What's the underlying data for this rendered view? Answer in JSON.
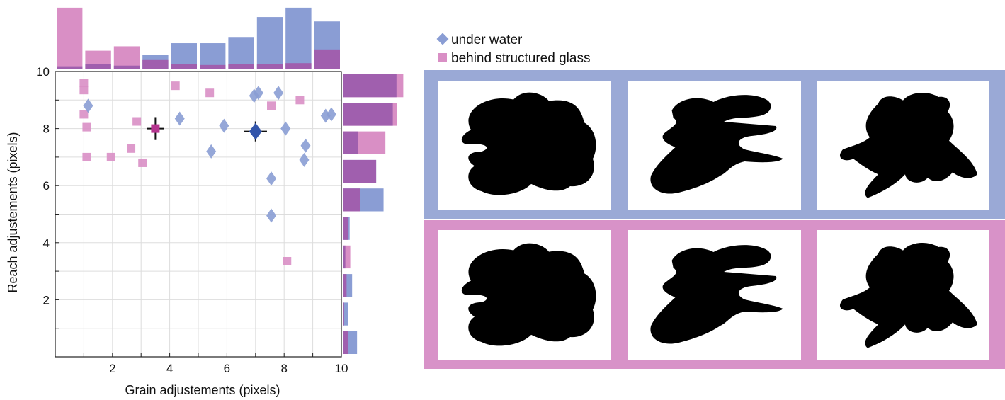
{
  "colors": {
    "water": "#8a9dd4",
    "glass": "#d98fc5",
    "overlap": "#a05fae",
    "water_mean": "#3355aa",
    "glass_mean": "#b5358f",
    "grid": "#dddddd",
    "frame_water": "#9aa9d6",
    "frame_glass": "#d892c8"
  },
  "chart_data": {
    "type": "scatter",
    "xlabel": "Grain adjustements (pixels)",
    "ylabel": "Reach adjustements (pixels)",
    "xlim": [
      0,
      10
    ],
    "ylim": [
      0,
      10
    ],
    "xticks": [
      "2",
      "4",
      "6",
      "8",
      "10"
    ],
    "yticks": [
      "2",
      "4",
      "6",
      "8",
      "10"
    ],
    "grid": true,
    "legend_position": "top-right",
    "series": [
      {
        "name": "under water",
        "marker": "diamond",
        "points": [
          [
            1.15,
            8.8
          ],
          [
            4.35,
            8.35
          ],
          [
            5.45,
            7.2
          ],
          [
            5.9,
            8.1
          ],
          [
            6.95,
            9.15
          ],
          [
            7.1,
            9.25
          ],
          [
            7.8,
            9.25
          ],
          [
            8.05,
            8.0
          ],
          [
            7.55,
            6.25
          ],
          [
            7.55,
            4.95
          ],
          [
            8.75,
            7.4
          ],
          [
            8.7,
            6.9
          ],
          [
            9.45,
            8.45
          ],
          [
            9.65,
            8.5
          ]
        ],
        "mean": [
          7.0,
          7.9
        ],
        "error": [
          0.4,
          0.35
        ]
      },
      {
        "name": "behind structured glass",
        "marker": "square",
        "points": [
          [
            1.0,
            9.6
          ],
          [
            1.0,
            9.35
          ],
          [
            1.0,
            8.5
          ],
          [
            1.1,
            8.05
          ],
          [
            1.1,
            7.0
          ],
          [
            1.95,
            7.0
          ],
          [
            2.65,
            7.3
          ],
          [
            2.85,
            8.25
          ],
          [
            3.05,
            6.8
          ],
          [
            4.2,
            9.5
          ],
          [
            5.4,
            9.25
          ],
          [
            7.55,
            8.8
          ],
          [
            8.55,
            9.0
          ],
          [
            8.1,
            3.35
          ]
        ],
        "mean": [
          3.5,
          8.0
        ],
        "error": [
          0.3,
          0.4
        ]
      }
    ],
    "top_histogram": {
      "bins": 10,
      "max": 10,
      "water": [
        0.5,
        0.8,
        0.6,
        2.3,
        4.2,
        4.2,
        5.2,
        8.4,
        9.9,
        7.7
      ],
      "glass": [
        9.9,
        3.0,
        3.7,
        1.5,
        0.8,
        0.7,
        0.8,
        0.8,
        1.0,
        3.2
      ]
    },
    "right_histogram": {
      "bins": 10,
      "max": 10,
      "water": [
        2.2,
        0.8,
        1.4,
        0.3,
        1.0,
        6.5,
        5.3,
        2.3,
        8.0,
        8.6
      ],
      "glass": [
        0.8,
        0.1,
        0.5,
        1.1,
        0.8,
        2.7,
        5.3,
        6.8,
        8.7,
        9.7
      ]
    }
  },
  "legend": {
    "water_label": "under water",
    "glass_label": "behind structured glass"
  },
  "panels": {
    "rows": [
      {
        "condition": "under water",
        "images": [
          "blob-1",
          "blob-2",
          "blob-3"
        ]
      },
      {
        "condition": "behind structured glass",
        "images": [
          "blob-1",
          "blob-2",
          "blob-3"
        ]
      }
    ]
  }
}
